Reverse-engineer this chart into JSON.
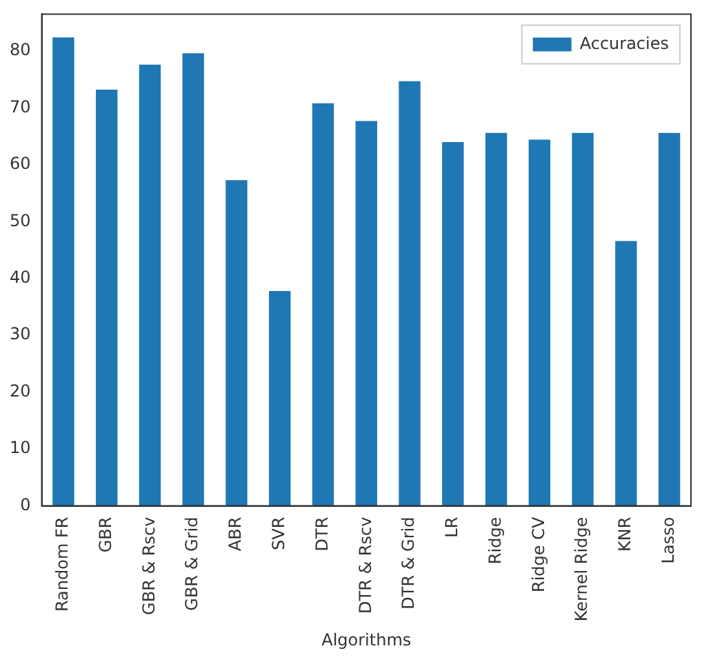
{
  "chart_data": {
    "type": "bar",
    "xlabel": "Algorithms",
    "categories": [
      "Random FR",
      "GBR",
      "GBR & Rscv",
      "GBR & Grid",
      "ABR",
      "SVR",
      "DTR",
      "DTR & Rscv",
      "DTR & Grid",
      "LR",
      "Ridge",
      "Ridge CV",
      "Kernel Ridge",
      "KNR",
      "Lasso"
    ],
    "series": [
      {
        "name": "Accuracies",
        "color": "#1f77b4",
        "values": [
          82.4,
          73.2,
          77.6,
          79.6,
          57.3,
          37.8,
          70.8,
          67.7,
          74.7,
          64.0,
          65.6,
          64.4,
          65.6,
          46.6,
          65.6
        ]
      }
    ],
    "ylim": [
      0,
      86.5
    ],
    "yticks": [
      0,
      10,
      20,
      30,
      40,
      50,
      60,
      70,
      80
    ],
    "grid": false,
    "legend": "top right"
  }
}
